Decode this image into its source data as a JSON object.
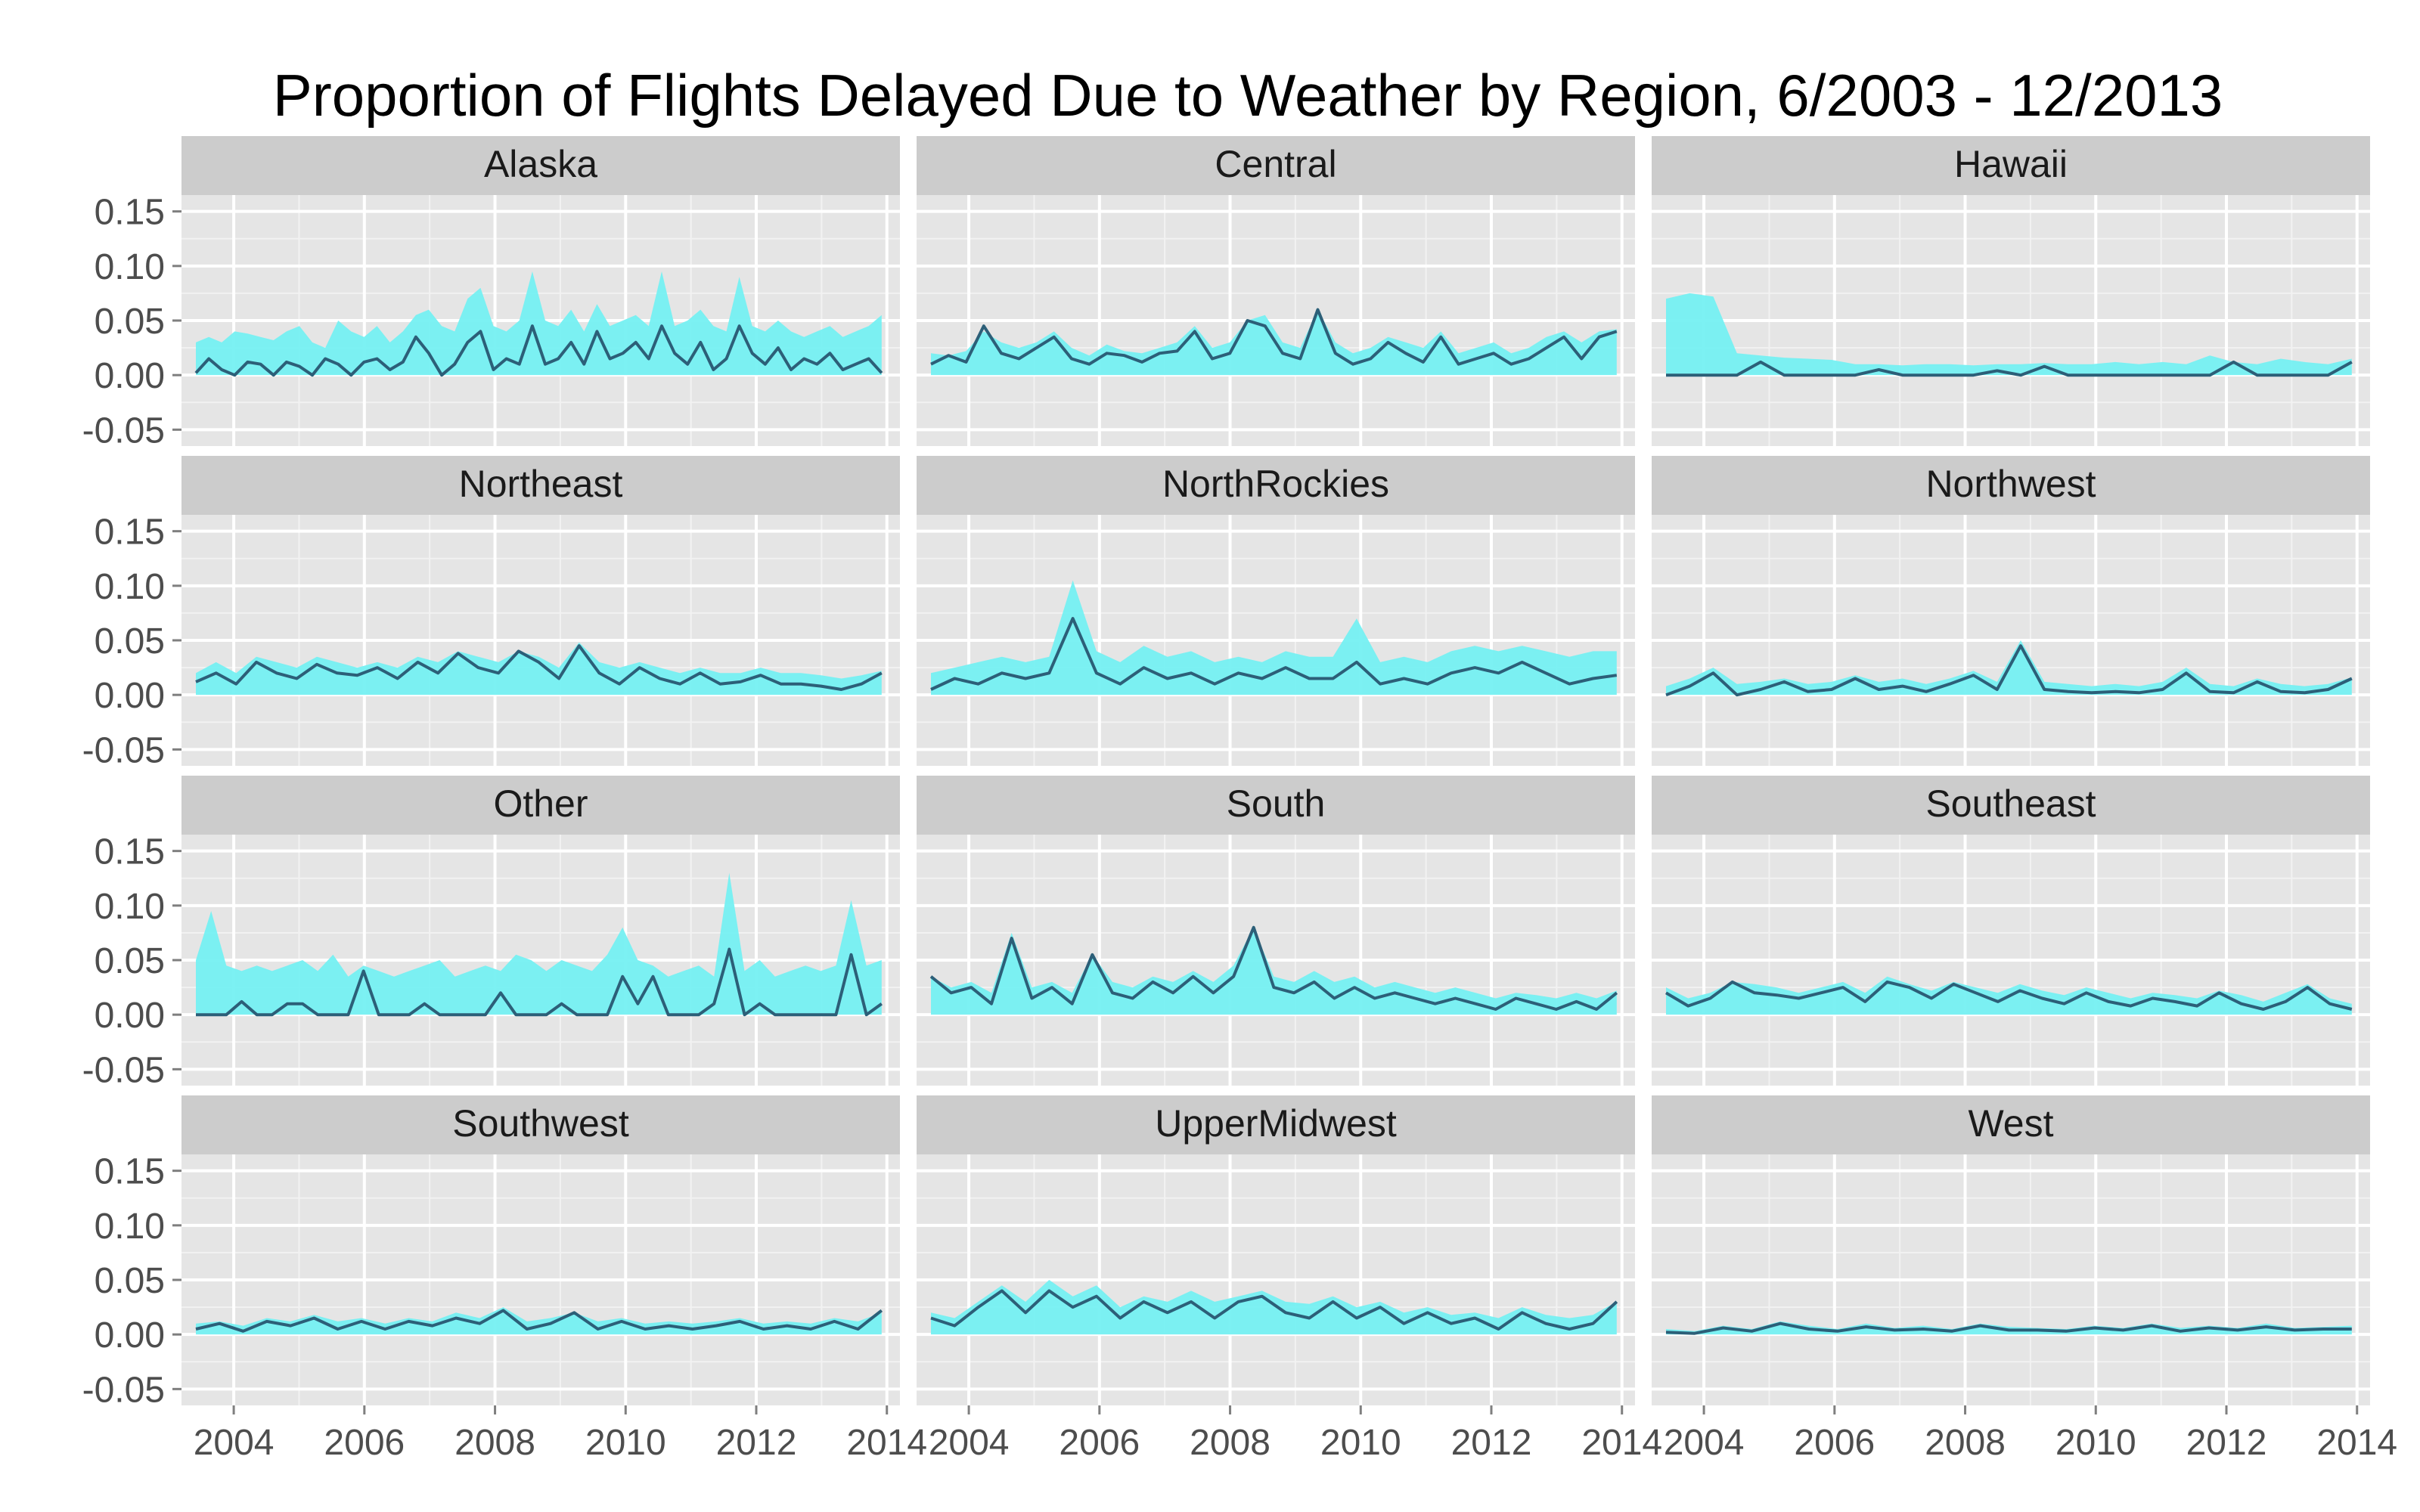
{
  "chart_data": {
    "type": "area",
    "title": "Proportion of Flights Delayed Due to Weather by Region, 6/2003 - 12/2013",
    "facet_layout": "4 rows x 3 columns",
    "xlabel": "",
    "ylabel": "",
    "xlim": [
      2003.2,
      2014.2
    ],
    "ylim": [
      -0.065,
      0.165
    ],
    "x_ticks": [
      2004,
      2006,
      2008,
      2010,
      2012,
      2014
    ],
    "y_ticks": [
      -0.05,
      0.0,
      0.05,
      0.1,
      0.15
    ],
    "x_tick_labels": [
      "2004",
      "2006",
      "2008",
      "2010",
      "2012",
      "2014"
    ],
    "y_tick_labels": [
      "-0.05",
      "0.00",
      "0.05",
      "0.10",
      "0.15"
    ],
    "x_range": [
      2003.42,
      2013.92
    ],
    "grid": true,
    "legend": "none",
    "colors": {
      "band": "#75F0F2",
      "line": "#2C5F78",
      "panel": "#E5E5E5",
      "strip": "#CCCCCC",
      "grid_major": "#FFFFFF",
      "grid_minor": "#F2F2F2"
    },
    "panels": [
      {
        "name": "Alaska",
        "upper": [
          0.03,
          0.035,
          0.03,
          0.04,
          0.038,
          0.035,
          0.032,
          0.04,
          0.045,
          0.03,
          0.025,
          0.05,
          0.04,
          0.035,
          0.045,
          0.03,
          0.04,
          0.055,
          0.06,
          0.045,
          0.04,
          0.07,
          0.08,
          0.045,
          0.04,
          0.05,
          0.095,
          0.05,
          0.045,
          0.06,
          0.04,
          0.065,
          0.045,
          0.05,
          0.055,
          0.045,
          0.095,
          0.045,
          0.05,
          0.06,
          0.045,
          0.04,
          0.09,
          0.045,
          0.04,
          0.05,
          0.04,
          0.035,
          0.04,
          0.045,
          0.035,
          0.04,
          0.045,
          0.055
        ],
        "line": [
          0.002,
          0.015,
          0.005,
          0.0,
          0.012,
          0.01,
          0.0,
          0.012,
          0.008,
          0.0,
          0.015,
          0.01,
          0.0,
          0.012,
          0.015,
          0.005,
          0.012,
          0.035,
          0.02,
          0.0,
          0.01,
          0.03,
          0.04,
          0.005,
          0.015,
          0.01,
          0.045,
          0.01,
          0.015,
          0.03,
          0.01,
          0.04,
          0.015,
          0.02,
          0.03,
          0.015,
          0.045,
          0.02,
          0.01,
          0.03,
          0.005,
          0.015,
          0.045,
          0.02,
          0.01,
          0.025,
          0.005,
          0.015,
          0.01,
          0.02,
          0.005,
          0.01,
          0.015,
          0.002
        ]
      },
      {
        "name": "Central",
        "upper": [
          0.02,
          0.018,
          0.022,
          0.04,
          0.03,
          0.025,
          0.03,
          0.04,
          0.025,
          0.018,
          0.028,
          0.022,
          0.02,
          0.025,
          0.03,
          0.045,
          0.025,
          0.03,
          0.05,
          0.055,
          0.03,
          0.025,
          0.06,
          0.03,
          0.02,
          0.025,
          0.035,
          0.03,
          0.025,
          0.04,
          0.02,
          0.025,
          0.03,
          0.02,
          0.025,
          0.035,
          0.04,
          0.03,
          0.04,
          0.042
        ],
        "line": [
          0.01,
          0.018,
          0.012,
          0.045,
          0.02,
          0.015,
          0.025,
          0.035,
          0.015,
          0.01,
          0.02,
          0.018,
          0.012,
          0.02,
          0.022,
          0.04,
          0.015,
          0.02,
          0.05,
          0.045,
          0.02,
          0.015,
          0.06,
          0.02,
          0.01,
          0.015,
          0.03,
          0.02,
          0.012,
          0.035,
          0.01,
          0.015,
          0.02,
          0.01,
          0.015,
          0.025,
          0.035,
          0.015,
          0.035,
          0.04
        ]
      },
      {
        "name": "Hawaii",
        "upper": [
          0.07,
          0.075,
          0.072,
          0.02,
          0.018,
          0.016,
          0.015,
          0.014,
          0.01,
          0.01,
          0.009,
          0.01,
          0.01,
          0.009,
          0.01,
          0.01,
          0.011,
          0.01,
          0.01,
          0.012,
          0.01,
          0.012,
          0.01,
          0.018,
          0.012,
          0.01,
          0.015,
          0.012,
          0.01,
          0.015
        ],
        "line": [
          0.0,
          0.0,
          0.0,
          0.0,
          0.012,
          0.0,
          0.0,
          0.0,
          0.0,
          0.005,
          0.0,
          0.0,
          0.0,
          0.0,
          0.004,
          0.0,
          0.008,
          0.0,
          0.0,
          0.0,
          0.0,
          0.0,
          0.0,
          0.0,
          0.012,
          0.0,
          0.0,
          0.0,
          0.0,
          0.012
        ]
      },
      {
        "name": "Northeast",
        "upper": [
          0.02,
          0.03,
          0.02,
          0.035,
          0.03,
          0.025,
          0.035,
          0.03,
          0.025,
          0.03,
          0.025,
          0.035,
          0.03,
          0.04,
          0.035,
          0.03,
          0.04,
          0.035,
          0.025,
          0.048,
          0.03,
          0.025,
          0.03,
          0.025,
          0.02,
          0.025,
          0.02,
          0.02,
          0.025,
          0.02,
          0.02,
          0.018,
          0.015,
          0.018,
          0.022
        ],
        "line": [
          0.012,
          0.02,
          0.01,
          0.03,
          0.02,
          0.015,
          0.028,
          0.02,
          0.018,
          0.025,
          0.015,
          0.03,
          0.02,
          0.038,
          0.025,
          0.02,
          0.04,
          0.03,
          0.015,
          0.045,
          0.02,
          0.01,
          0.025,
          0.015,
          0.01,
          0.02,
          0.01,
          0.012,
          0.018,
          0.01,
          0.01,
          0.008,
          0.005,
          0.01,
          0.02
        ]
      },
      {
        "name": "NorthRockies",
        "upper": [
          0.02,
          0.025,
          0.03,
          0.035,
          0.03,
          0.035,
          0.105,
          0.04,
          0.03,
          0.045,
          0.035,
          0.04,
          0.03,
          0.035,
          0.03,
          0.04,
          0.035,
          0.035,
          0.07,
          0.03,
          0.035,
          0.03,
          0.04,
          0.045,
          0.04,
          0.045,
          0.04,
          0.035,
          0.04,
          0.04
        ],
        "line": [
          0.005,
          0.015,
          0.01,
          0.02,
          0.015,
          0.02,
          0.07,
          0.02,
          0.01,
          0.025,
          0.015,
          0.02,
          0.01,
          0.02,
          0.015,
          0.025,
          0.015,
          0.015,
          0.03,
          0.01,
          0.015,
          0.01,
          0.02,
          0.025,
          0.02,
          0.03,
          0.02,
          0.01,
          0.015,
          0.018
        ]
      },
      {
        "name": "Northwest",
        "upper": [
          0.008,
          0.015,
          0.025,
          0.01,
          0.012,
          0.015,
          0.01,
          0.012,
          0.018,
          0.012,
          0.015,
          0.01,
          0.015,
          0.022,
          0.012,
          0.05,
          0.012,
          0.01,
          0.008,
          0.01,
          0.008,
          0.012,
          0.025,
          0.01,
          0.008,
          0.015,
          0.01,
          0.008,
          0.01,
          0.016
        ],
        "line": [
          0.0,
          0.008,
          0.02,
          0.0,
          0.005,
          0.012,
          0.003,
          0.005,
          0.015,
          0.005,
          0.008,
          0.003,
          0.01,
          0.018,
          0.005,
          0.045,
          0.005,
          0.003,
          0.002,
          0.003,
          0.002,
          0.005,
          0.02,
          0.003,
          0.002,
          0.012,
          0.003,
          0.002,
          0.005,
          0.015
        ]
      },
      {
        "name": "Other",
        "upper": [
          0.05,
          0.095,
          0.045,
          0.04,
          0.045,
          0.04,
          0.045,
          0.05,
          0.04,
          0.055,
          0.035,
          0.045,
          0.04,
          0.035,
          0.04,
          0.045,
          0.05,
          0.035,
          0.04,
          0.045,
          0.04,
          0.055,
          0.05,
          0.04,
          0.05,
          0.045,
          0.04,
          0.055,
          0.08,
          0.05,
          0.045,
          0.035,
          0.04,
          0.045,
          0.035,
          0.13,
          0.04,
          0.05,
          0.035,
          0.04,
          0.045,
          0.04,
          0.045,
          0.105,
          0.045,
          0.05
        ],
        "line": [
          0.0,
          0.0,
          0.0,
          0.012,
          0.0,
          0.0,
          0.01,
          0.01,
          0.0,
          0.0,
          0.0,
          0.04,
          0.0,
          0.0,
          0.0,
          0.01,
          0.0,
          0.0,
          0.0,
          0.0,
          0.02,
          0.0,
          0.0,
          0.0,
          0.01,
          0.0,
          0.0,
          0.0,
          0.035,
          0.01,
          0.035,
          0.0,
          0.0,
          0.0,
          0.01,
          0.06,
          0.0,
          0.01,
          0.0,
          0.0,
          0.0,
          0.0,
          0.0,
          0.055,
          0.0,
          0.01
        ]
      },
      {
        "name": "South",
        "upper": [
          0.035,
          0.025,
          0.03,
          0.02,
          0.075,
          0.025,
          0.03,
          0.02,
          0.055,
          0.03,
          0.025,
          0.035,
          0.03,
          0.04,
          0.03,
          0.045,
          0.08,
          0.035,
          0.03,
          0.04,
          0.03,
          0.035,
          0.025,
          0.03,
          0.025,
          0.02,
          0.025,
          0.02,
          0.015,
          0.02,
          0.018,
          0.015,
          0.02,
          0.015,
          0.022
        ],
        "line": [
          0.035,
          0.02,
          0.025,
          0.01,
          0.07,
          0.015,
          0.025,
          0.01,
          0.055,
          0.02,
          0.015,
          0.03,
          0.02,
          0.035,
          0.02,
          0.035,
          0.08,
          0.025,
          0.02,
          0.03,
          0.015,
          0.025,
          0.015,
          0.02,
          0.015,
          0.01,
          0.015,
          0.01,
          0.005,
          0.015,
          0.01,
          0.005,
          0.012,
          0.005,
          0.02
        ]
      },
      {
        "name": "Southeast",
        "upper": [
          0.025,
          0.015,
          0.02,
          0.03,
          0.028,
          0.025,
          0.02,
          0.025,
          0.03,
          0.02,
          0.035,
          0.028,
          0.022,
          0.03,
          0.025,
          0.02,
          0.028,
          0.022,
          0.018,
          0.025,
          0.02,
          0.015,
          0.02,
          0.018,
          0.015,
          0.022,
          0.018,
          0.012,
          0.02,
          0.028,
          0.015,
          0.01
        ],
        "line": [
          0.02,
          0.008,
          0.015,
          0.03,
          0.02,
          0.018,
          0.015,
          0.02,
          0.025,
          0.012,
          0.03,
          0.025,
          0.015,
          0.028,
          0.02,
          0.012,
          0.022,
          0.015,
          0.01,
          0.02,
          0.012,
          0.008,
          0.015,
          0.012,
          0.008,
          0.02,
          0.01,
          0.005,
          0.012,
          0.025,
          0.01,
          0.005
        ]
      },
      {
        "name": "Southwest",
        "upper": [
          0.01,
          0.012,
          0.008,
          0.015,
          0.012,
          0.018,
          0.012,
          0.015,
          0.01,
          0.015,
          0.012,
          0.02,
          0.015,
          0.025,
          0.012,
          0.015,
          0.02,
          0.012,
          0.015,
          0.01,
          0.012,
          0.01,
          0.012,
          0.015,
          0.01,
          0.012,
          0.01,
          0.015,
          0.012,
          0.02
        ],
        "line": [
          0.005,
          0.01,
          0.003,
          0.012,
          0.008,
          0.015,
          0.005,
          0.012,
          0.005,
          0.012,
          0.008,
          0.015,
          0.01,
          0.022,
          0.005,
          0.01,
          0.02,
          0.005,
          0.012,
          0.005,
          0.008,
          0.005,
          0.008,
          0.012,
          0.005,
          0.008,
          0.005,
          0.012,
          0.005,
          0.022
        ]
      },
      {
        "name": "UpperMidwest",
        "upper": [
          0.02,
          0.015,
          0.03,
          0.045,
          0.03,
          0.05,
          0.035,
          0.045,
          0.025,
          0.035,
          0.03,
          0.04,
          0.03,
          0.035,
          0.04,
          0.03,
          0.028,
          0.035,
          0.025,
          0.03,
          0.02,
          0.025,
          0.018,
          0.02,
          0.015,
          0.025,
          0.018,
          0.015,
          0.018,
          0.03
        ],
        "line": [
          0.015,
          0.008,
          0.025,
          0.04,
          0.02,
          0.04,
          0.025,
          0.035,
          0.015,
          0.03,
          0.02,
          0.03,
          0.015,
          0.03,
          0.035,
          0.02,
          0.015,
          0.03,
          0.015,
          0.025,
          0.01,
          0.02,
          0.01,
          0.015,
          0.005,
          0.02,
          0.01,
          0.005,
          0.01,
          0.03
        ]
      },
      {
        "name": "West",
        "upper": [
          0.005,
          0.003,
          0.008,
          0.005,
          0.012,
          0.008,
          0.005,
          0.01,
          0.006,
          0.008,
          0.005,
          0.01,
          0.007,
          0.006,
          0.005,
          0.008,
          0.006,
          0.01,
          0.006,
          0.008,
          0.006,
          0.01,
          0.006,
          0.007,
          0.008
        ],
        "line": [
          0.002,
          0.001,
          0.006,
          0.003,
          0.01,
          0.005,
          0.003,
          0.007,
          0.004,
          0.005,
          0.003,
          0.008,
          0.004,
          0.004,
          0.003,
          0.006,
          0.004,
          0.008,
          0.003,
          0.006,
          0.004,
          0.007,
          0.004,
          0.005,
          0.005
        ]
      }
    ]
  }
}
